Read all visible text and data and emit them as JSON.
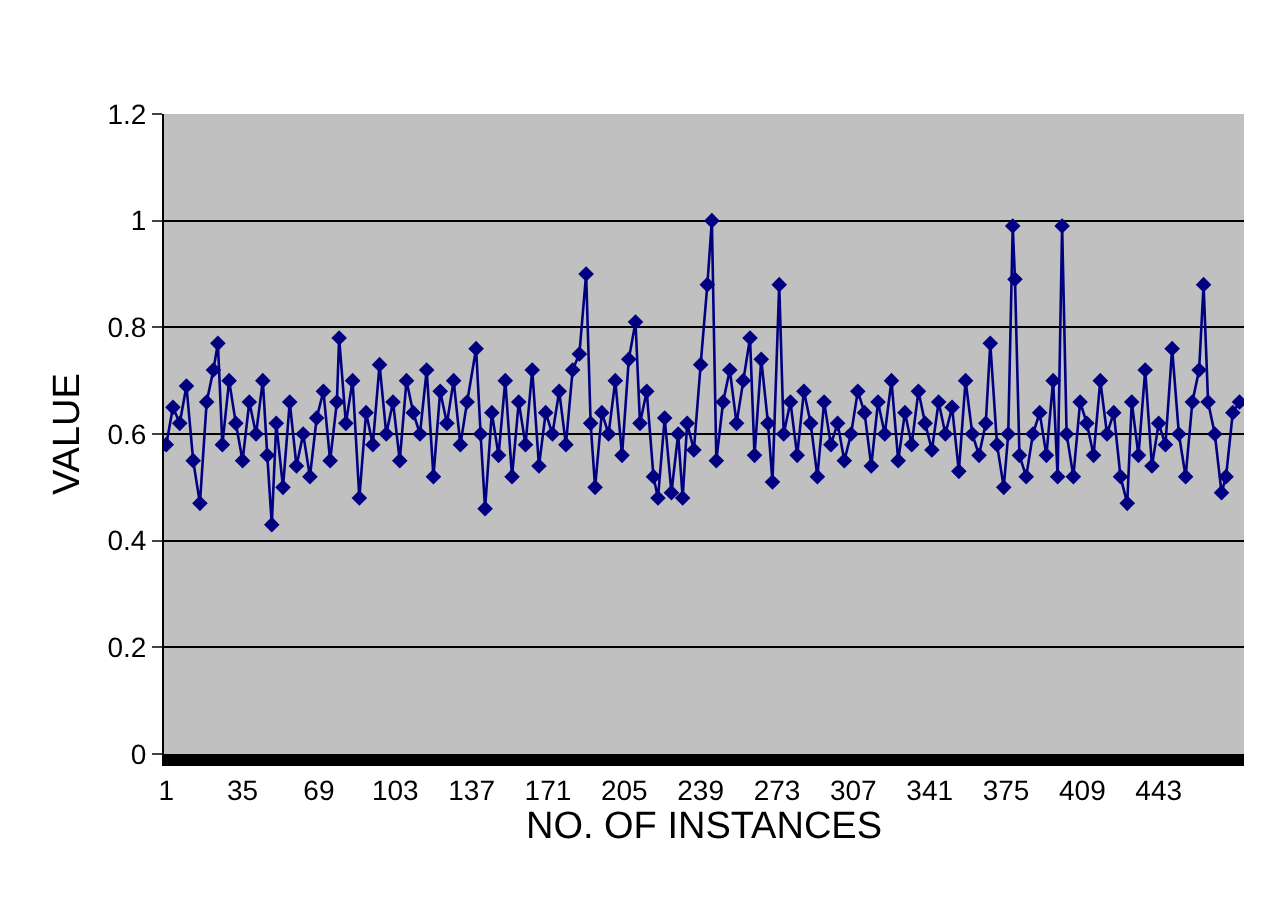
{
  "chart_data": {
    "type": "line",
    "xlabel": "NO. OF INSTANCES",
    "ylabel": "VALUE",
    "xlim": [
      0,
      481
    ],
    "xticks": [
      1,
      35,
      69,
      103,
      137,
      171,
      205,
      239,
      273,
      307,
      341,
      375,
      409,
      443
    ],
    "ylim": [
      0,
      1.2
    ],
    "yticks": [
      0,
      0.2,
      0.4,
      0.6,
      0.8,
      1,
      1.2
    ],
    "grid": "y",
    "marker": "diamond",
    "line_style": "solid",
    "series": [
      {
        "color": "#000080",
        "x": [
          1,
          4,
          7,
          10,
          13,
          16,
          19,
          22,
          24,
          26,
          29,
          32,
          35,
          38,
          41,
          44,
          46,
          48,
          50,
          53,
          56,
          59,
          62,
          65,
          68,
          71,
          74,
          77,
          78,
          81,
          84,
          87,
          90,
          93,
          96,
          99,
          102,
          105,
          108,
          111,
          114,
          117,
          120,
          123,
          126,
          129,
          132,
          135,
          139,
          141,
          143,
          146,
          149,
          152,
          155,
          158,
          161,
          164,
          167,
          170,
          173,
          176,
          179,
          182,
          185,
          188,
          190,
          192,
          195,
          198,
          201,
          204,
          207,
          210,
          212,
          215,
          218,
          220,
          223,
          226,
          229,
          231,
          233,
          236,
          239,
          242,
          244,
          246,
          249,
          252,
          255,
          258,
          261,
          263,
          266,
          269,
          271,
          274,
          276,
          279,
          282,
          285,
          288,
          291,
          294,
          297,
          300,
          303,
          306,
          309,
          312,
          315,
          318,
          321,
          324,
          327,
          330,
          333,
          336,
          339,
          342,
          345,
          348,
          351,
          354,
          357,
          360,
          363,
          366,
          368,
          371,
          374,
          376,
          378,
          379,
          381,
          384,
          387,
          390,
          393,
          396,
          398,
          400,
          402,
          405,
          408,
          411,
          414,
          417,
          420,
          423,
          426,
          429,
          431,
          434,
          437,
          440,
          443,
          446,
          449,
          452,
          455,
          458,
          461,
          463,
          465,
          468,
          471,
          473,
          476,
          479
        ],
        "values": [
          0.58,
          0.65,
          0.62,
          0.69,
          0.55,
          0.47,
          0.66,
          0.72,
          0.77,
          0.58,
          0.7,
          0.62,
          0.55,
          0.66,
          0.6,
          0.7,
          0.56,
          0.43,
          0.62,
          0.5,
          0.66,
          0.54,
          0.6,
          0.52,
          0.63,
          0.68,
          0.55,
          0.66,
          0.78,
          0.62,
          0.7,
          0.48,
          0.64,
          0.58,
          0.73,
          0.6,
          0.66,
          0.55,
          0.7,
          0.64,
          0.6,
          0.72,
          0.52,
          0.68,
          0.62,
          0.7,
          0.58,
          0.66,
          0.76,
          0.6,
          0.46,
          0.64,
          0.56,
          0.7,
          0.52,
          0.66,
          0.58,
          0.72,
          0.54,
          0.64,
          0.6,
          0.68,
          0.58,
          0.72,
          0.75,
          0.9,
          0.62,
          0.5,
          0.64,
          0.6,
          0.7,
          0.56,
          0.74,
          0.81,
          0.62,
          0.68,
          0.52,
          0.48,
          0.63,
          0.49,
          0.6,
          0.48,
          0.62,
          0.57,
          0.73,
          0.88,
          1.0,
          0.55,
          0.66,
          0.72,
          0.62,
          0.7,
          0.78,
          0.56,
          0.74,
          0.62,
          0.51,
          0.88,
          0.6,
          0.66,
          0.56,
          0.68,
          0.62,
          0.52,
          0.66,
          0.58,
          0.62,
          0.55,
          0.6,
          0.68,
          0.64,
          0.54,
          0.66,
          0.6,
          0.7,
          0.55,
          0.64,
          0.58,
          0.68,
          0.62,
          0.57,
          0.66,
          0.6,
          0.65,
          0.53,
          0.7,
          0.6,
          0.56,
          0.62,
          0.77,
          0.58,
          0.5,
          0.6,
          0.99,
          0.89,
          0.56,
          0.52,
          0.6,
          0.64,
          0.56,
          0.7,
          0.52,
          0.99,
          0.6,
          0.52,
          0.66,
          0.62,
          0.56,
          0.7,
          0.6,
          0.64,
          0.52,
          0.47,
          0.66,
          0.56,
          0.72,
          0.54,
          0.62,
          0.58,
          0.76,
          0.6,
          0.52,
          0.66,
          0.72,
          0.88,
          0.66,
          0.6,
          0.49,
          0.52,
          0.64,
          0.66
        ]
      }
    ]
  }
}
